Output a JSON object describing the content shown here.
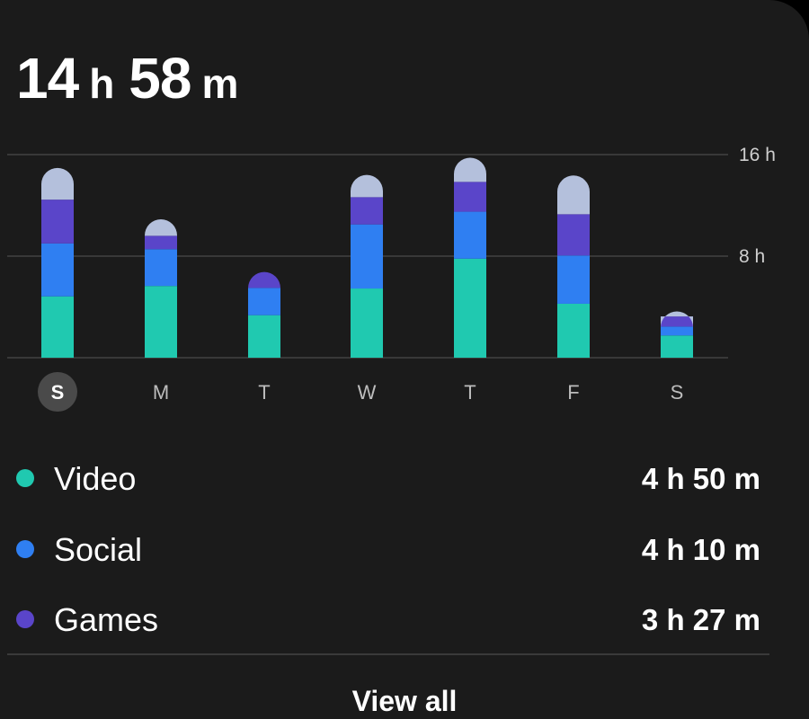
{
  "summary": {
    "hours": "14",
    "hours_unit": "h",
    "minutes": "58",
    "minutes_unit": "m"
  },
  "colors": {
    "background": "#1b1b1b",
    "video": "#20c9b0",
    "social": "#2f7ff2",
    "games": "#5a45c9",
    "other": "#b4c0dc",
    "grid": "#4a4a4a",
    "selected_day_bg": "#4a4a4a"
  },
  "chart_data": {
    "type": "bar",
    "stacked": true,
    "categories": [
      "S",
      "M",
      "T",
      "W",
      "T",
      "F",
      "S"
    ],
    "selected_index": 0,
    "ylim": [
      0,
      16
    ],
    "y_ticks": [
      {
        "value": 8,
        "label": "8 h"
      },
      {
        "value": 16,
        "label": "16 h"
      }
    ],
    "grid": true,
    "series": [
      {
        "name": "Video",
        "color": "#20c9b0",
        "values": [
          4.83,
          5.65,
          3.35,
          5.45,
          7.8,
          4.25,
          1.75
        ]
      },
      {
        "name": "Social",
        "color": "#2f7ff2",
        "values": [
          4.17,
          2.9,
          2.15,
          5.05,
          3.7,
          3.8,
          0.7
        ]
      },
      {
        "name": "Games",
        "color": "#5a45c9",
        "values": [
          3.45,
          1.05,
          1.25,
          2.15,
          2.35,
          3.25,
          0.8
        ]
      },
      {
        "name": "",
        "color": "#b4c0dc",
        "values": [
          2.5,
          1.3,
          0.0,
          1.75,
          1.9,
          3.05,
          0.4
        ]
      }
    ]
  },
  "legend": [
    {
      "name": "Video",
      "value": "4 h 50 m",
      "color": "#20c9b0"
    },
    {
      "name": "Social",
      "value": "4 h 10 m",
      "color": "#2f7ff2"
    },
    {
      "name": "Games",
      "value": "3 h 27 m",
      "color": "#5a45c9"
    }
  ],
  "footer": {
    "view_all_label": "View all"
  }
}
